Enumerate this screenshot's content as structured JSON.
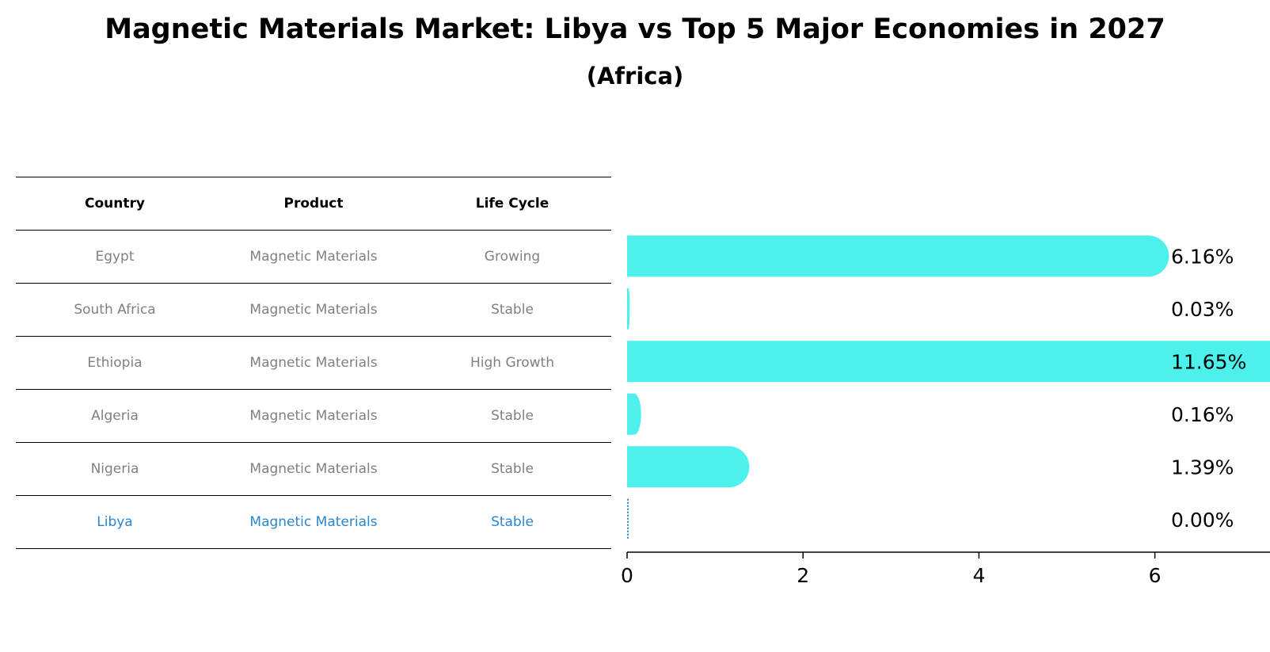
{
  "title": "Magnetic Materials Market: Libya vs Top 5 Major Economies in 2027",
  "subtitle": "(Africa)",
  "table": {
    "headers": [
      "Country",
      "Product",
      "Life Cycle"
    ],
    "rows": [
      {
        "country": "Egypt",
        "product": "Magnetic Materials",
        "life_cycle": "Growing"
      },
      {
        "country": "South Africa",
        "product": "Magnetic Materials",
        "life_cycle": "Stable"
      },
      {
        "country": "Ethiopia",
        "product": "Magnetic Materials",
        "life_cycle": "High Growth"
      },
      {
        "country": "Algeria",
        "product": "Magnetic Materials",
        "life_cycle": "Stable"
      },
      {
        "country": "Nigeria",
        "product": "Magnetic Materials",
        "life_cycle": "Stable"
      },
      {
        "country": "Libya",
        "product": "Magnetic Materials",
        "life_cycle": "Stable"
      }
    ]
  },
  "chart_data": {
    "type": "bar",
    "orientation": "horizontal",
    "categories": [
      "Egypt",
      "South Africa",
      "Ethiopia",
      "Algeria",
      "Nigeria",
      "Libya"
    ],
    "values": [
      6.16,
      0.03,
      11.65,
      0.16,
      1.39,
      0.0
    ],
    "value_labels": [
      "6.16%",
      "0.03%",
      "11.65%",
      "0.16%",
      "1.39%",
      "0.00%"
    ],
    "xlim": [
      0,
      12.2
    ],
    "xticks": [
      0,
      2,
      4,
      6,
      8,
      10,
      12
    ],
    "highlight": "Libya",
    "colors": {
      "bar": "#4df0ea",
      "highlight": "#2a86d0"
    }
  }
}
